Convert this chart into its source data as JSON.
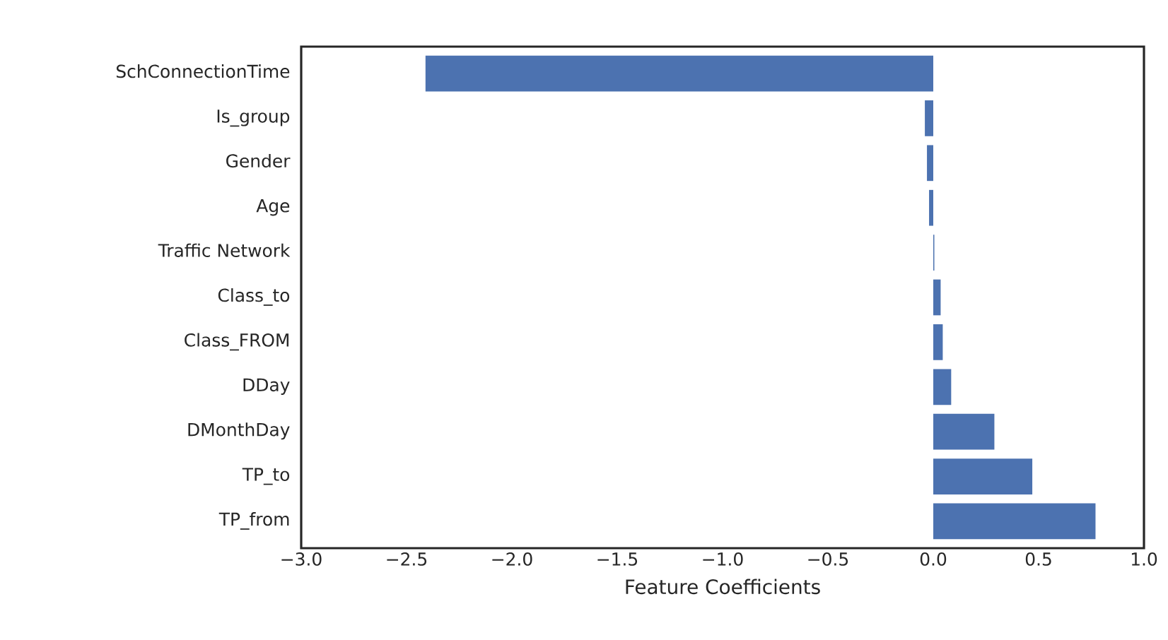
{
  "chart_data": {
    "type": "bar",
    "orientation": "horizontal",
    "xlabel": "Feature Coefficients",
    "categories": [
      "SchConnectionTime",
      "Is_group",
      "Gender",
      "Age",
      "Traffic Network",
      "Class_to",
      "Class_FROM",
      "DDay",
      "DMonthDay",
      "TP_to",
      "TP_from"
    ],
    "values": [
      -2.41,
      -0.04,
      -0.03,
      -0.02,
      0.005,
      0.035,
      0.045,
      0.085,
      0.29,
      0.47,
      0.77
    ],
    "color": "#4c72b0",
    "xlim": [
      -3.0,
      1.0
    ],
    "xticks": [
      {
        "value": -3.0,
        "label": "−3.0"
      },
      {
        "value": -2.5,
        "label": "−2.5"
      },
      {
        "value": -2.0,
        "label": "−2.0"
      },
      {
        "value": -1.5,
        "label": "−1.5"
      },
      {
        "value": -1.0,
        "label": "−1.0"
      },
      {
        "value": -0.5,
        "label": "−0.5"
      },
      {
        "value": 0.0,
        "label": "0.0"
      },
      {
        "value": 0.5,
        "label": "0.5"
      },
      {
        "value": 1.0,
        "label": "1.0"
      }
    ],
    "grid": false
  }
}
